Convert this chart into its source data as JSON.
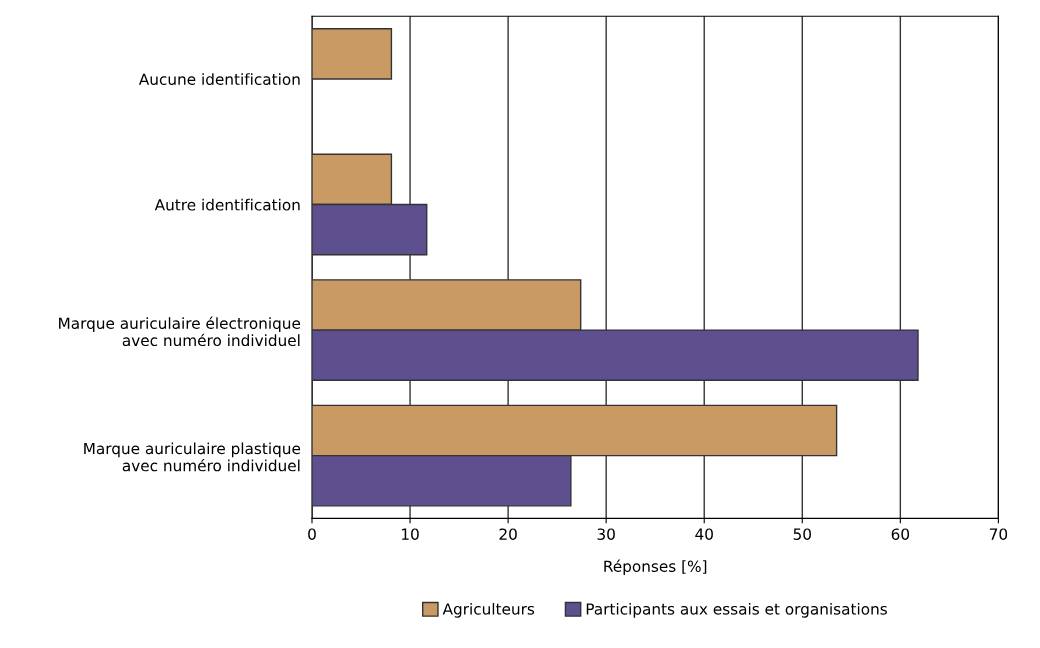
{
  "chart_data": {
    "type": "bar",
    "orientation": "horizontal",
    "xlabel": "Réponses [%]",
    "categories": [
      "Aucune identification",
      "Autre identification",
      "Marque auriculaire électronique\navec numéro individuel",
      "Marque auriculaire plastique\navec numéro individuel"
    ],
    "series": [
      {
        "name": "Agriculteurs",
        "color": "#c99a64",
        "values": [
          8.1,
          8.1,
          27.4,
          53.5
        ]
      },
      {
        "name": "Participants aux essais et organisations",
        "color": "#5e4f8e",
        "values": [
          null,
          11.7,
          61.8,
          26.4
        ]
      }
    ],
    "xlim": [
      0,
      70
    ],
    "xticks": [
      0,
      10,
      20,
      30,
      40,
      50,
      60,
      70
    ],
    "grid": "x",
    "legend": "bottom"
  }
}
